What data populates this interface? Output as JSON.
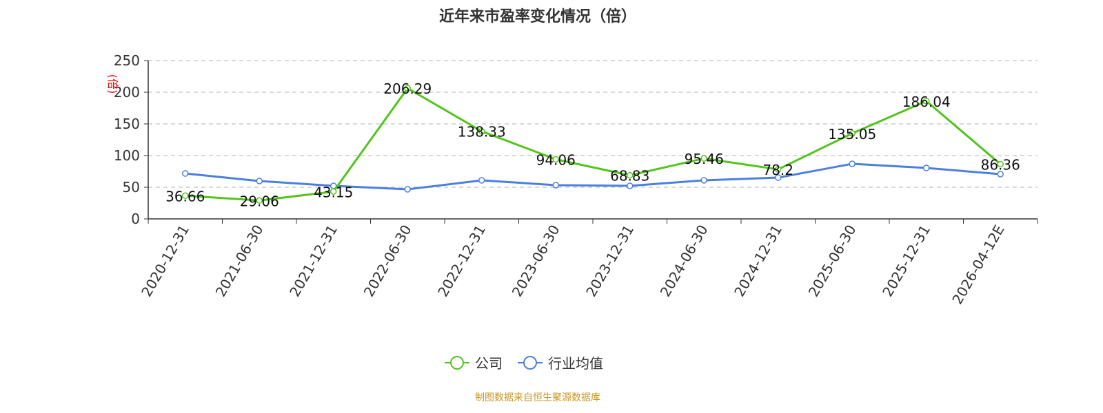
{
  "chart_data": {
    "type": "line",
    "title": "近年来市盈率变化情况（倍）",
    "ylabel": "(倍)",
    "xlabel": "",
    "ylim": [
      0,
      250
    ],
    "yticks": [
      0,
      50,
      100,
      150,
      200,
      250
    ],
    "grid": true,
    "legend_position": "bottom",
    "categories": [
      "2020-12-31",
      "2021-06-30",
      "2021-12-31",
      "2022-06-30",
      "2022-12-31",
      "2023-06-30",
      "2023-12-31",
      "2024-06-30",
      "2024-12-31",
      "2025-06-30",
      "2025-12-31",
      "2026-04-12E"
    ],
    "series": [
      {
        "name": "公司",
        "color": "#52c41a",
        "labels": true,
        "values": [
          36.66,
          29.06,
          43.15,
          206.29,
          138.33,
          94.06,
          68.83,
          95.46,
          78.2,
          135.05,
          186.04,
          86.36
        ]
      },
      {
        "name": "行业均值",
        "color": "#4a7fe0",
        "labels": false,
        "values": [
          71.7,
          59.8,
          52.2,
          46.7,
          60.9,
          53.3,
          52.2,
          60.9,
          65.2,
          87.0,
          80.4,
          70.7
        ]
      }
    ]
  },
  "source": "制图数据来自恒生聚源数据库"
}
